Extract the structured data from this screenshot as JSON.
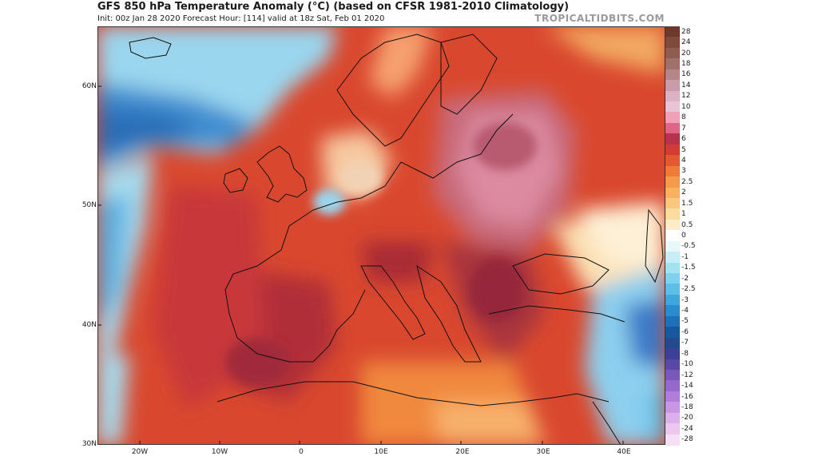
{
  "header": {
    "title": "GFS 850 hPa Temperature Anomaly (°C) (based on CFSR 1981-2010 Climatology)",
    "subtitle": "Init: 00z Jan 28 2020   Forecast Hour: [114]   valid at 18z Sat, Feb 01 2020",
    "brand": "TROPICALTIDBITS.COM"
  },
  "map": {
    "lat_labels": [
      "60N",
      "50N",
      "40N",
      "30N"
    ],
    "lon_labels": [
      "20W",
      "10W",
      "0",
      "10E",
      "20E",
      "30E",
      "40E"
    ]
  },
  "colorbar": {
    "ticks": [
      "28",
      "24",
      "20",
      "18",
      "16",
      "14",
      "12",
      "10",
      "8",
      "7",
      "6",
      "5",
      "4",
      "3",
      "2.5",
      "2",
      "1.5",
      "1",
      "0.5",
      "0",
      "-0.5",
      "-1",
      "-1.5",
      "-2",
      "-2.5",
      "-3",
      "-4",
      "-5",
      "-6",
      "-7",
      "-8",
      "-10",
      "-12",
      "-14",
      "-16",
      "-18",
      "-20",
      "-24",
      "-28"
    ],
    "colors": [
      "#6b3a2a",
      "#7d4a3c",
      "#8f5c52",
      "#a1706a",
      "#b4868a",
      "#c89ca8",
      "#dab2c3",
      "#e9c4d6",
      "#f0a0b8",
      "#e06488",
      "#b8324e",
      "#d23c34",
      "#e45a30",
      "#f07a38",
      "#f59a48",
      "#f8b25e",
      "#fac87c",
      "#fcdc9e",
      "#fdedc6",
      "#ffffff",
      "#e8f7f7",
      "#c8eef5",
      "#a4e2f2",
      "#7ed2ec",
      "#5cc0e6",
      "#3ea8dc",
      "#2a8ccc",
      "#1e70b8",
      "#1858a0",
      "#244a8e",
      "#3c4096",
      "#5a48a8",
      "#7858ba",
      "#9468cc",
      "#b07ed8",
      "#c896e2",
      "#dcb0ea",
      "#ecc8f0",
      "#f6e0f6"
    ]
  }
}
